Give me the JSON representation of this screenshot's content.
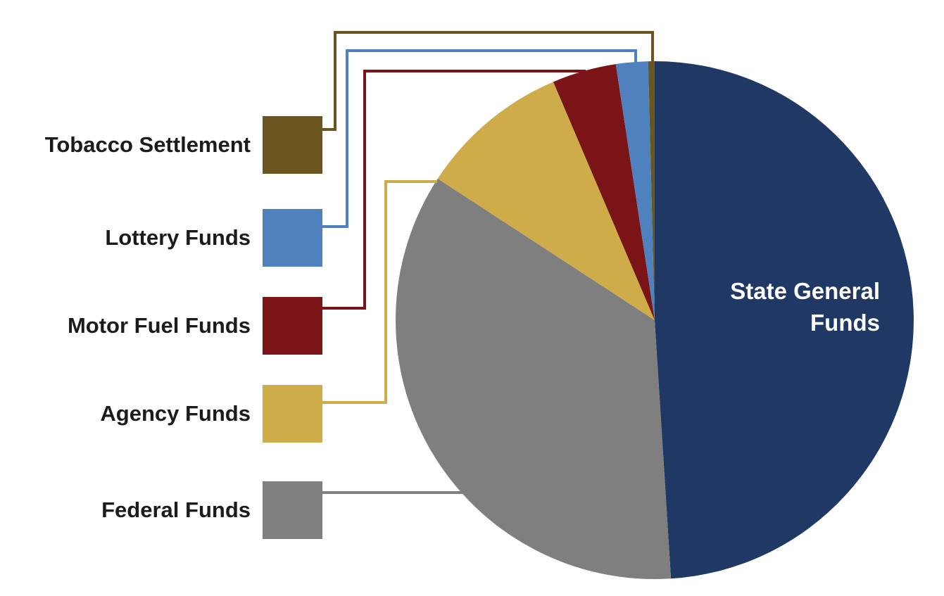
{
  "chart_data": {
    "type": "pie",
    "title": "",
    "start_angle": "12 o'clock",
    "direction": "clockwise",
    "unit": "percent-of-circle (estimated from slice angles; no numeric labels shown in image)",
    "slices": [
      {
        "label": "State General Funds",
        "value": 49.0,
        "color": "#1F3864",
        "labeled_inside": true
      },
      {
        "label": "Federal Funds",
        "value": 35.2,
        "color": "#7F7F7F"
      },
      {
        "label": "Agency Funds",
        "value": 9.4,
        "color": "#CEAC49"
      },
      {
        "label": "Motor Fuel Funds",
        "value": 4.0,
        "color": "#7B1416"
      },
      {
        "label": "Lottery Funds",
        "value": 2.0,
        "color": "#4E81BD"
      },
      {
        "label": "Tobacco Settlement",
        "value": 0.4,
        "color": "#6A551E"
      }
    ],
    "legend_position": "left"
  },
  "legend": {
    "items": [
      {
        "label": "Tobacco Settlement",
        "color": "#6A551E"
      },
      {
        "label": "Lottery Funds",
        "color": "#4E81BD"
      },
      {
        "label": "Motor Fuel Funds",
        "color": "#7B1416"
      },
      {
        "label": "Agency Funds",
        "color": "#CEAC49"
      },
      {
        "label": "Federal Funds",
        "color": "#7F7F7F"
      }
    ]
  },
  "pie_label": {
    "line1": "State General",
    "line2": "Funds"
  }
}
